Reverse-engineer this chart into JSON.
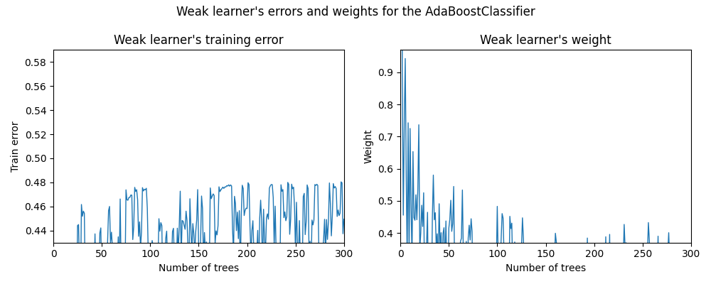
{
  "suptitle": "Weak learner's errors and weights for the AdaBoostClassifier",
  "left_title": "Weak learner's training error",
  "right_title": "Weak learner's weight",
  "left_ylabel": "Train error",
  "right_ylabel": "Weight",
  "xlabel": "Number of trees",
  "n_trees": 300,
  "line_color": "#1f77b4",
  "line_width": 1.0,
  "left_ylim": [
    0.43,
    0.59
  ],
  "right_ylim": [
    0.37,
    0.97
  ],
  "left_yticks": [
    0.44,
    0.46,
    0.48,
    0.5,
    0.52,
    0.54,
    0.56,
    0.58
  ],
  "right_yticks": [
    0.4,
    0.5,
    0.6,
    0.7,
    0.8,
    0.9
  ],
  "xticks": [
    0,
    50,
    100,
    150,
    200,
    250,
    300
  ],
  "random_seed": 42,
  "figsize": [
    10.0,
    4.0
  ],
  "dpi": 100
}
